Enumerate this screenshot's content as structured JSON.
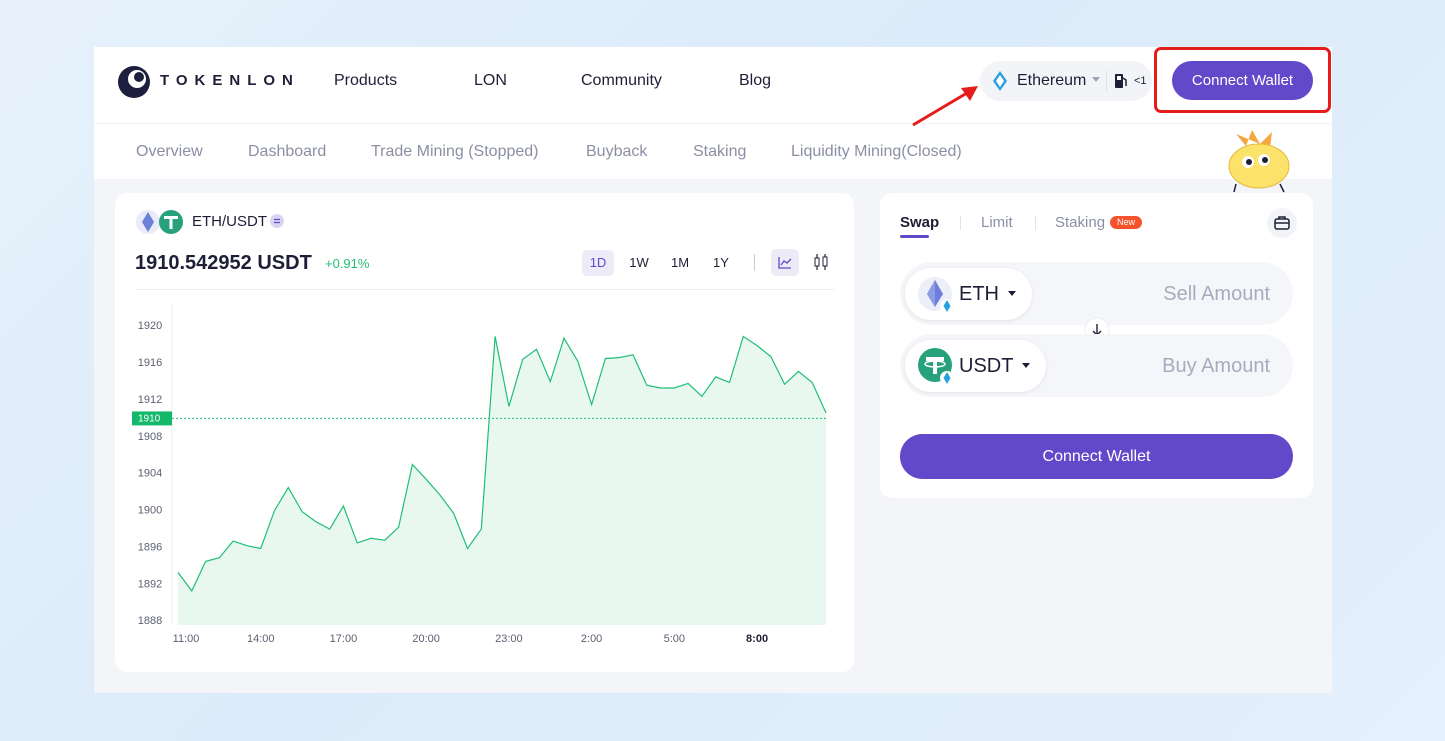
{
  "header": {
    "brand": "TOKENLON",
    "nav": [
      "Products",
      "LON",
      "Community",
      "Blog"
    ],
    "network": "Ethereum",
    "gas": "<1",
    "connect_button": "Connect Wallet"
  },
  "subnav": [
    "Overview",
    "Dashboard",
    "Trade Mining (Stopped)",
    "Buyback",
    "Staking",
    "Liquidity Mining(Closed)"
  ],
  "chart_panel": {
    "pair": "ETH/USDT",
    "price": "1910.542952 USDT",
    "change": "+0.91%",
    "ranges": [
      "1D",
      "1W",
      "1M",
      "1Y"
    ],
    "active_range": 0
  },
  "chart_data": {
    "type": "line",
    "categories": [
      "11:00",
      null,
      null,
      null,
      null,
      null,
      "14:00",
      null,
      null,
      null,
      null,
      null,
      "17:00",
      null,
      null,
      null,
      null,
      null,
      "20:00",
      null,
      null,
      null,
      null,
      null,
      "23:00",
      null,
      null,
      null,
      null,
      null,
      "2:00",
      null,
      null,
      null,
      null,
      null,
      "5:00",
      null,
      null,
      null,
      null,
      null,
      "8:00",
      null,
      null,
      null,
      null,
      null
    ],
    "values": [
      1893.3,
      1891.3,
      1894.5,
      1894.9,
      1896.7,
      1896.2,
      1895.9,
      1900.0,
      1902.5,
      1899.9,
      1898.8,
      1898.0,
      1900.5,
      1896.5,
      1897.0,
      1896.8,
      1898.2,
      1905.0,
      1903.4,
      1901.7,
      1899.7,
      1895.9,
      1898.0,
      1918.9,
      1911.3,
      1916.4,
      1917.5,
      1914.0,
      1918.7,
      1916.2,
      1911.5,
      1916.5,
      1916.6,
      1916.9,
      1913.6,
      1913.3,
      1913.3,
      1913.8,
      1912.4,
      1914.5,
      1913.9,
      1918.9,
      1917.9,
      1916.7,
      1913.7,
      1915.1,
      1913.9,
      1910.6
    ],
    "color": "#1fbf75",
    "ylim": [
      1887.6,
      1922.3
    ],
    "yticks": [
      1920,
      1916,
      1912,
      1908,
      1904,
      1900,
      1896,
      1892,
      1888
    ],
    "reference_line": 1910,
    "emphasized_category": 42
  },
  "swap_panel": {
    "tabs": [
      "Swap",
      "Limit",
      "Staking"
    ],
    "badge": "New",
    "sell_token": "ETH",
    "sell_placeholder": "Sell Amount",
    "buy_token": "USDT",
    "buy_placeholder": "Buy Amount",
    "button": "Connect Wallet"
  }
}
